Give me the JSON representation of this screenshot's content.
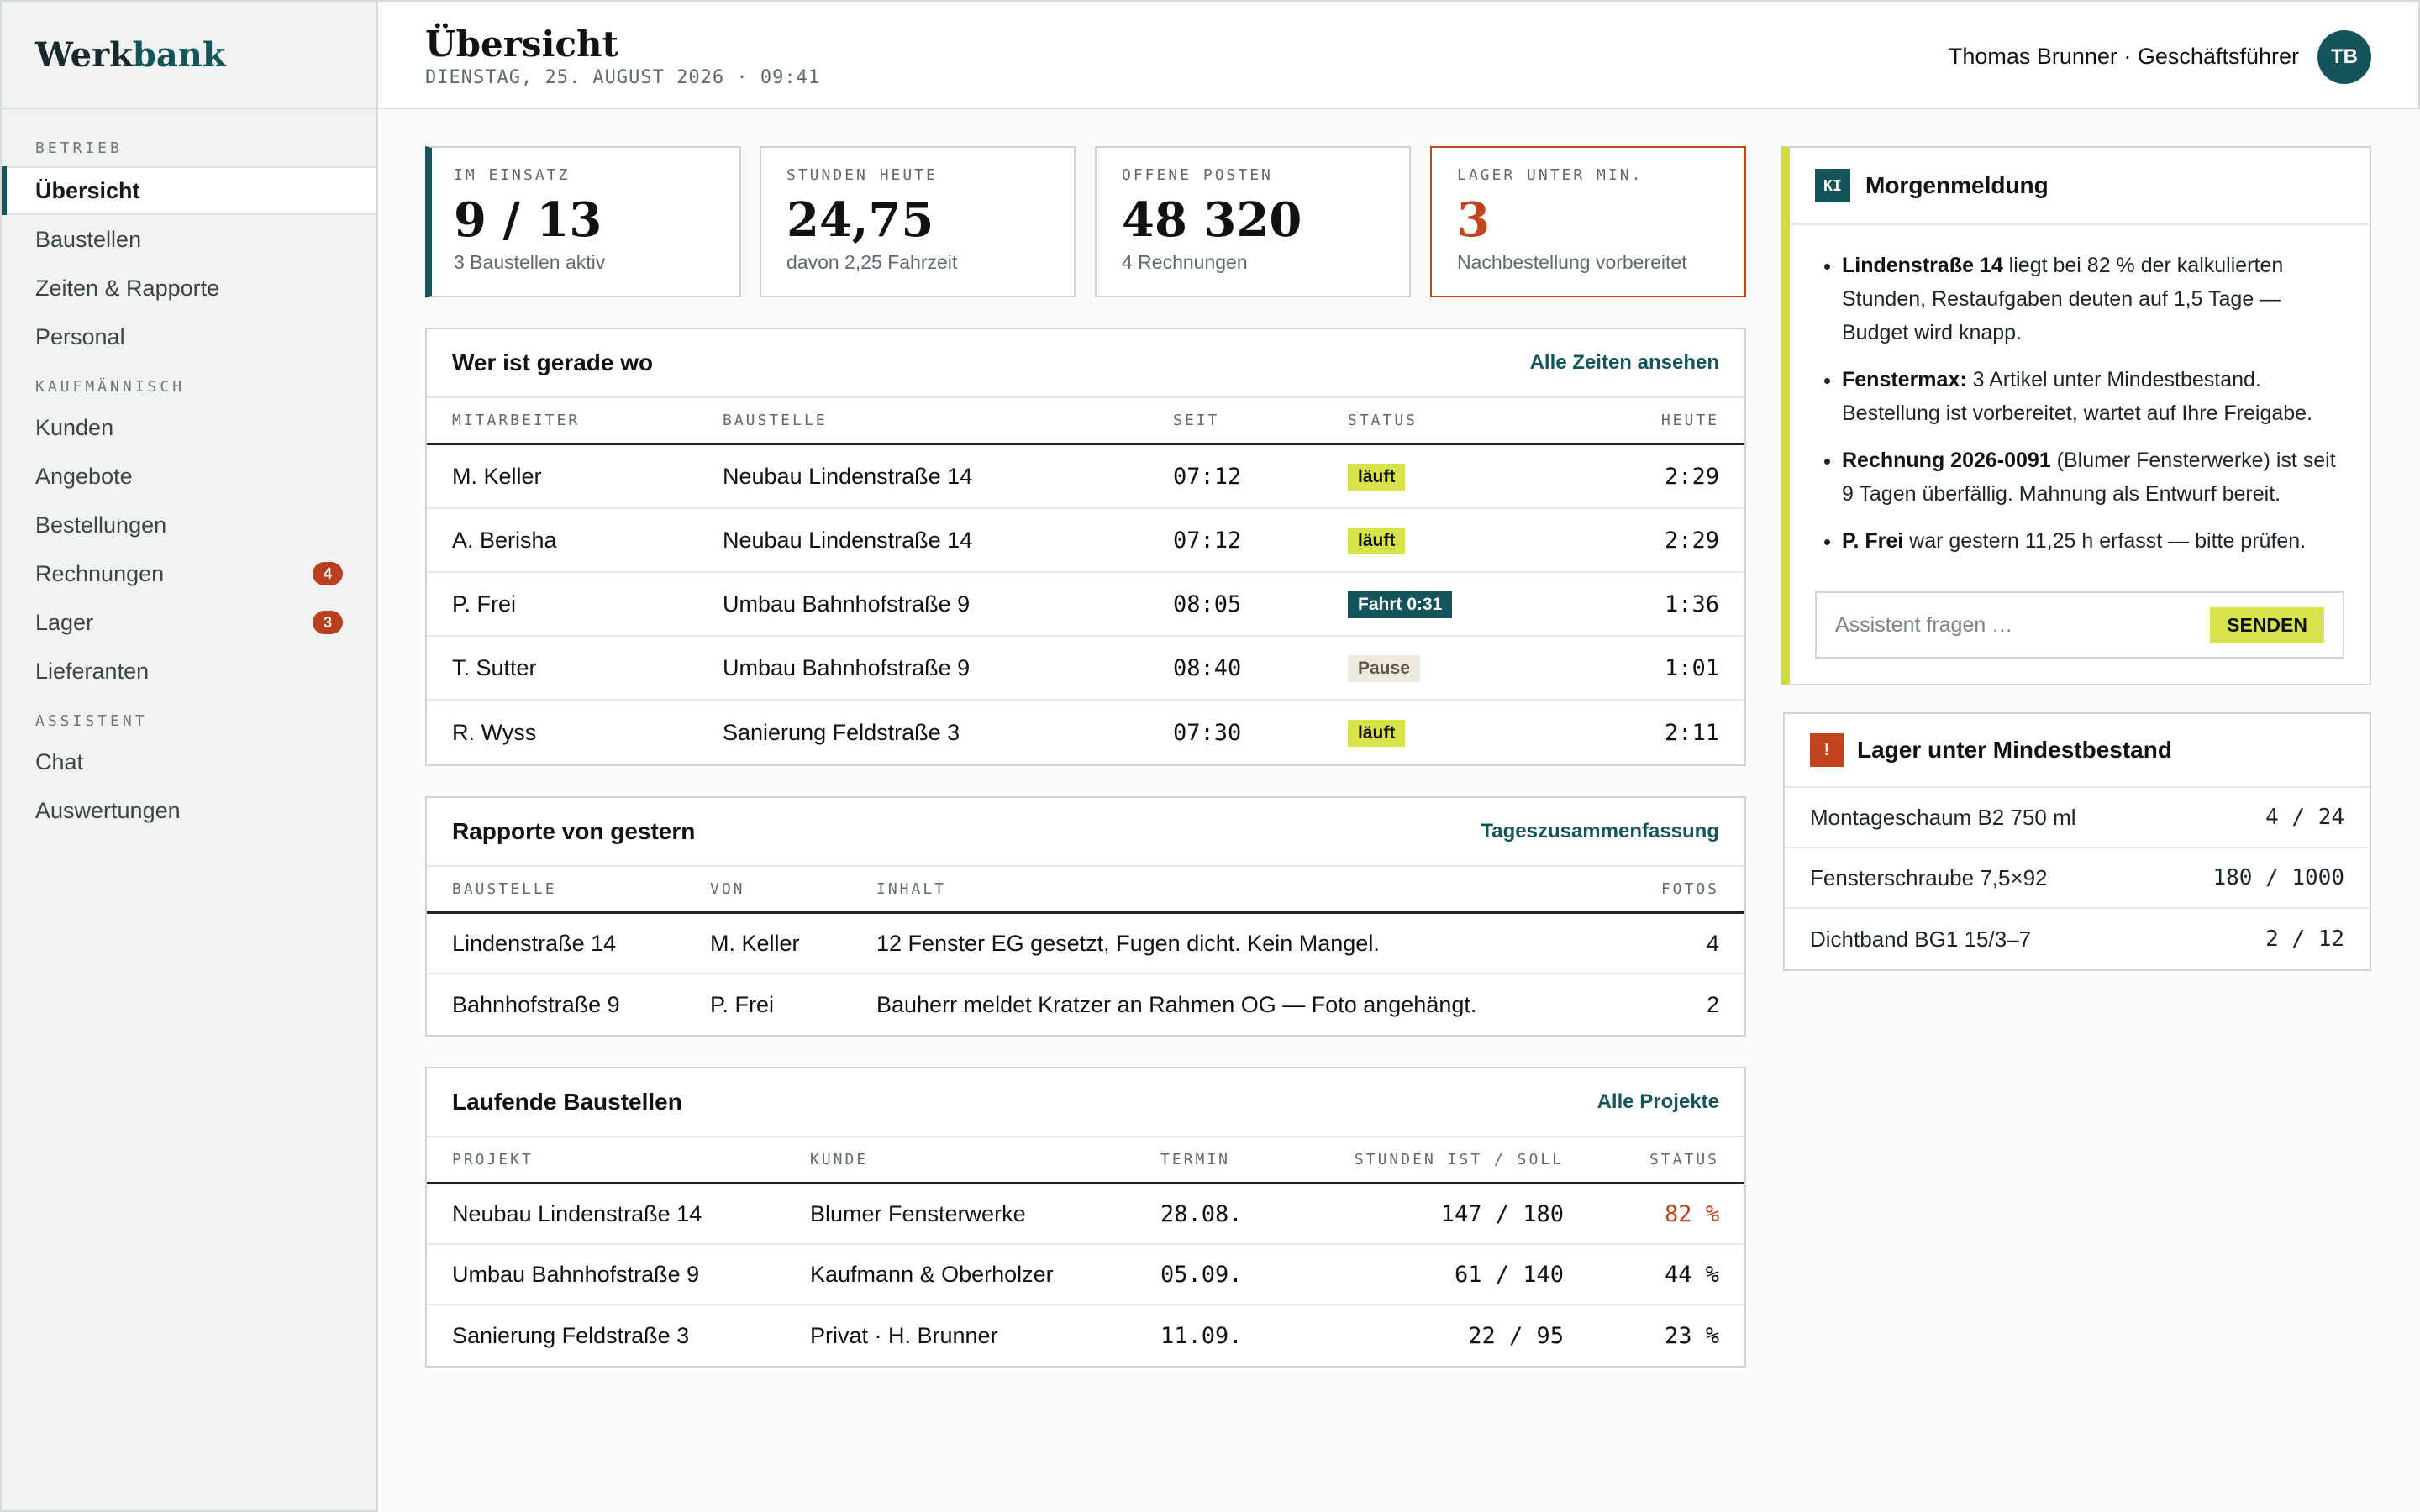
{
  "brand": {
    "part1": "Werk",
    "part2": "bank"
  },
  "sidebar": {
    "sections": [
      {
        "label": "BETRIEB"
      },
      {
        "label": "KAUFMÄNNISCH"
      },
      {
        "label": "ASSISTENT"
      }
    ],
    "items": [
      {
        "label": "Übersicht",
        "active": true
      },
      {
        "label": "Baustellen"
      },
      {
        "label": "Zeiten & Rapporte"
      },
      {
        "label": "Personal"
      },
      {
        "label": "Kunden"
      },
      {
        "label": "Angebote"
      },
      {
        "label": "Bestellungen"
      },
      {
        "label": "Rechnungen",
        "badge": "4"
      },
      {
        "label": "Lager",
        "badge": "3"
      },
      {
        "label": "Lieferanten"
      },
      {
        "label": "Chat"
      },
      {
        "label": "Auswertungen"
      }
    ]
  },
  "header": {
    "title": "Übersicht",
    "date": "DIENSTAG, 25. AUGUST 2026 · 09:41",
    "user": "Thomas Brunner · Geschäftsführer",
    "initials": "TB"
  },
  "kpis": [
    {
      "label": "IM EINSATZ",
      "value": "9 / 13",
      "sub": "3 Baustellen aktiv"
    },
    {
      "label": "STUNDEN HEUTE",
      "value": "24,75",
      "sub": "davon 2,25 Fahrzeit"
    },
    {
      "label": "OFFENE POSTEN",
      "value": "48 320",
      "sub": "4 Rechnungen"
    },
    {
      "label": "LAGER UNTER MIN.",
      "value": "3",
      "sub": "Nachbestellung vorbereitet"
    }
  ],
  "who": {
    "title": "Wer ist gerade wo",
    "link": "Alle Zeiten ansehen",
    "columns": [
      "MITARBEITER",
      "BAUSTELLE",
      "SEIT",
      "STATUS",
      "HEUTE"
    ],
    "rows": [
      {
        "name": "M. Keller",
        "site": "Neubau Lindenstraße 14",
        "since": "07:12",
        "status": "läuft",
        "today": "2:29"
      },
      {
        "name": "A. Berisha",
        "site": "Neubau Lindenstraße 14",
        "since": "07:12",
        "status": "läuft",
        "today": "2:29"
      },
      {
        "name": "P. Frei",
        "site": "Umbau Bahnhofstraße 9",
        "since": "08:05",
        "status": "Fahrt 0:31",
        "today": "1:36"
      },
      {
        "name": "T. Sutter",
        "site": "Umbau Bahnhofstraße 9",
        "since": "08:40",
        "status": "Pause",
        "today": "1:01"
      },
      {
        "name": "R. Wyss",
        "site": "Sanierung Feldstraße 3",
        "since": "07:30",
        "status": "läuft",
        "today": "2:11"
      }
    ]
  },
  "reports": {
    "title": "Rapporte von gestern",
    "link": "Tageszusammenfassung",
    "columns": [
      "BAUSTELLE",
      "VON",
      "INHALT",
      "FOTOS"
    ],
    "rows": [
      {
        "site": "Lindenstraße 14",
        "by": "M. Keller",
        "content": "12 Fenster EG gesetzt, Fugen dicht. Kein Mangel.",
        "photos": "4"
      },
      {
        "site": "Bahnhofstraße 9",
        "by": "P. Frei",
        "content": "Bauherr meldet Kratzer an Rahmen OG — Foto angehängt.",
        "photos": "2"
      }
    ]
  },
  "projects": {
    "title": "Laufende Baustellen",
    "link": "Alle Projekte",
    "columns": [
      "PROJEKT",
      "KUNDE",
      "TERMIN",
      "STUNDEN IST / SOLL",
      "STATUS"
    ],
    "rows": [
      {
        "project": "Neubau Lindenstraße 14",
        "client": "Blumer Fensterwerke",
        "date": "28.08.",
        "hours": "147 / 180",
        "status": "82 %",
        "warn": true
      },
      {
        "project": "Umbau Bahnhofstraße 9",
        "client": "Kaufmann & Oberholzer",
        "date": "05.09.",
        "hours": "61 / 140",
        "status": "44 %"
      },
      {
        "project": "Sanierung Feldstraße 3",
        "client": "Privat · H. Brunner",
        "date": "11.09.",
        "hours": "22 / 95",
        "status": "23 %"
      }
    ]
  },
  "ai": {
    "badge": "KI",
    "title": "Morgenmeldung",
    "bullets": [
      {
        "bold": "Lindenstraße 14",
        "text": " liegt bei 82 % der kalkulierten Stunden, Restaufgaben deuten auf 1,5 Tage — Budget wird knapp."
      },
      {
        "bold": "Fenstermax:",
        "text": " 3 Artikel unter Mindestbestand. Bestellung ist vorbereitet, wartet auf Ihre Freigabe."
      },
      {
        "bold": "Rechnung 2026-0091",
        "text": " (Blumer Fensterwerke) ist seit 9 Tagen überfällig. Mahnung als Entwurf bereit."
      },
      {
        "bold": "P. Frei",
        "text": " war gestern 11,25 h erfasst — bitte prüfen."
      }
    ],
    "placeholder": "Assistent fragen …",
    "send": "SENDEN"
  },
  "stock": {
    "badge": "!",
    "title": "Lager unter Mindestbestand",
    "rows": [
      {
        "item": "Montageschaum B2 750 ml",
        "qty": "4 / 24"
      },
      {
        "item": "Fensterschraube 7,5×92",
        "qty": "180 / 1000"
      },
      {
        "item": "Dichtband BG1 15/3–7",
        "qty": "2 / 12"
      }
    ]
  },
  "colors": {
    "accent": "#14545a",
    "lime": "#d7e34a",
    "alert": "#c2441f"
  }
}
